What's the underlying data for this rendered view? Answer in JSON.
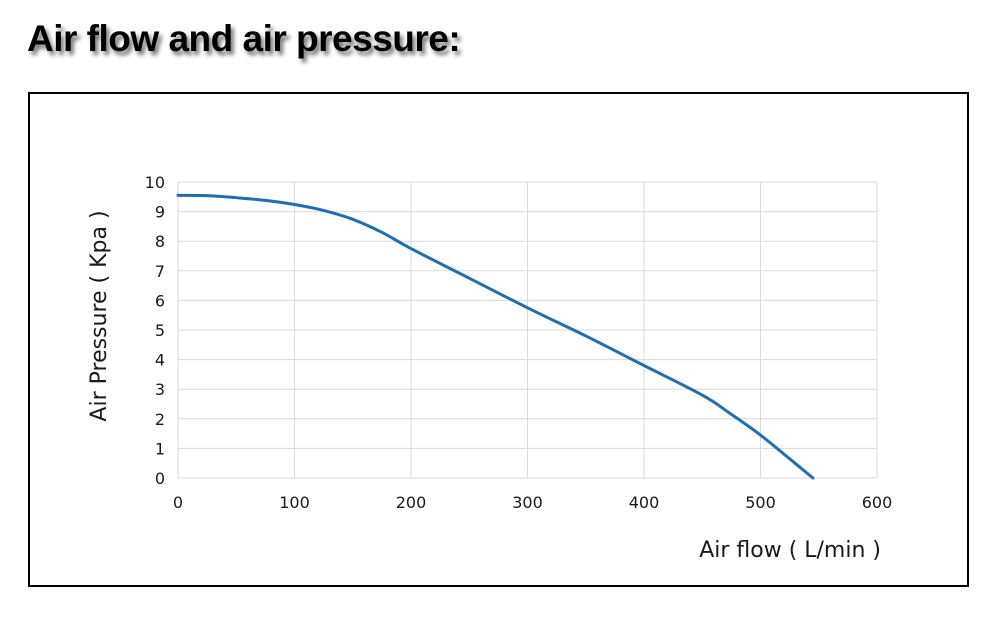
{
  "page": {
    "title": "Air flow and air pressure:"
  },
  "colors": {
    "series": "#1f6fb0",
    "grid": "#d9d9d9",
    "frame": "#000000"
  },
  "chart_data": {
    "type": "line",
    "title": "",
    "xlabel": "Air flow ( L/min )",
    "ylabel": "Air Pressure ( Kpa )",
    "xlim": [
      0,
      600
    ],
    "ylim": [
      0,
      10
    ],
    "xticks": [
      0,
      100,
      200,
      300,
      400,
      500,
      600
    ],
    "yticks": [
      0,
      1,
      2,
      3,
      4,
      5,
      6,
      7,
      8,
      9,
      10
    ],
    "grid": true,
    "legend": "none",
    "series": [
      {
        "x": [
          0,
          25,
          50,
          75,
          100,
          125,
          150,
          175,
          200,
          250,
          300,
          350,
          400,
          450,
          475,
          500,
          525,
          545
        ],
        "y": [
          9.55,
          9.54,
          9.47,
          9.38,
          9.24,
          9.04,
          8.74,
          8.3,
          7.75,
          6.75,
          5.75,
          4.8,
          3.8,
          2.8,
          2.15,
          1.45,
          0.65,
          0.0
        ]
      }
    ]
  }
}
